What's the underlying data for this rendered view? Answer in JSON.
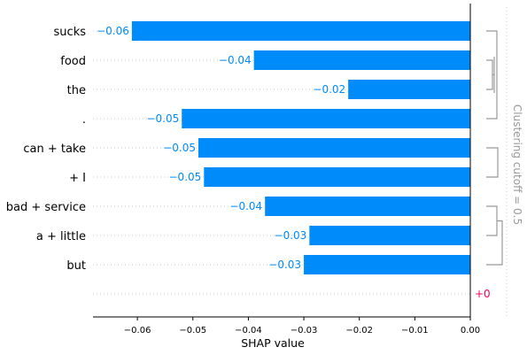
{
  "chart_data": {
    "type": "bar",
    "orientation": "horizontal",
    "categories": [
      "sucks",
      "food",
      "the",
      ".",
      "can + take",
      "+ I",
      "bad + service",
      "a + little",
      "but",
      ""
    ],
    "values": [
      -0.061,
      -0.039,
      -0.022,
      -0.052,
      -0.049,
      -0.048,
      -0.037,
      -0.029,
      -0.03,
      0.0
    ],
    "value_labels": [
      "−0.06",
      "−0.04",
      "−0.02",
      "−0.05",
      "−0.05",
      "−0.05",
      "−0.04",
      "−0.03",
      "−0.03",
      "+0"
    ],
    "xlabel": "SHAP value",
    "xlim": [
      -0.068,
      0.0
    ],
    "xticks": [
      -0.06,
      -0.05,
      -0.04,
      -0.03,
      -0.02,
      -0.01,
      0.0
    ],
    "xtick_labels": [
      "−0.06",
      "−0.05",
      "−0.04",
      "−0.03",
      "−0.02",
      "−0.01",
      "0.00"
    ],
    "cluster_label": "Clustering cutoff = 0.5",
    "grid": "dotted horizontal row guides",
    "colors": {
      "negative": "#008bfb",
      "positive": "#ff0051",
      "cluster": "#999999",
      "axis": "#000000"
    }
  }
}
